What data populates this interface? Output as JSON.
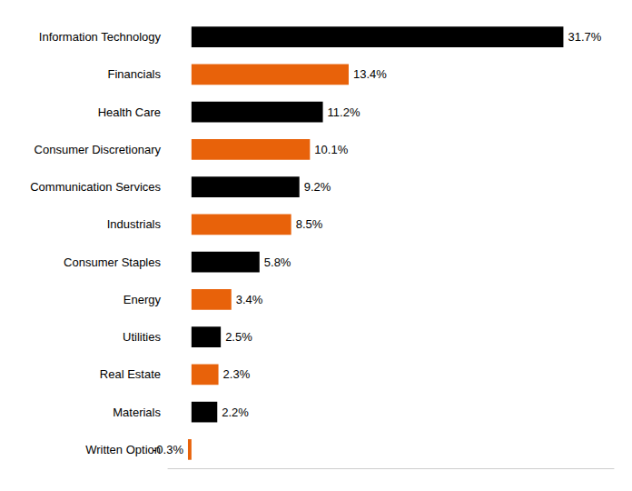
{
  "chart_data": {
    "type": "bar",
    "orientation": "horizontal",
    "categories": [
      "Information Technology",
      "Financials",
      "Health Care",
      "Consumer Discretionary",
      "Communication Services",
      "Industrials",
      "Consumer Staples",
      "Energy",
      "Utilities",
      "Real Estate",
      "Materials",
      "Written Option"
    ],
    "values": [
      31.7,
      13.4,
      11.2,
      10.1,
      9.2,
      8.5,
      5.8,
      3.4,
      2.5,
      2.3,
      2.2,
      -0.3
    ],
    "value_labels": [
      "31.7%",
      "13.4%",
      "11.2%",
      "10.1%",
      "9.2%",
      "8.5%",
      "5.8%",
      "3.4%",
      "2.5%",
      "2.3%",
      "2.2%",
      "-0.3%"
    ],
    "colors": [
      "#000000",
      "#e8620a",
      "#000000",
      "#e8620a",
      "#000000",
      "#e8620a",
      "#000000",
      "#e8620a",
      "#000000",
      "#e8620a",
      "#000000",
      "#e8620a"
    ],
    "xlim": [
      -2,
      36
    ],
    "data_labels": true,
    "tick_labels": "y",
    "grid": false
  }
}
